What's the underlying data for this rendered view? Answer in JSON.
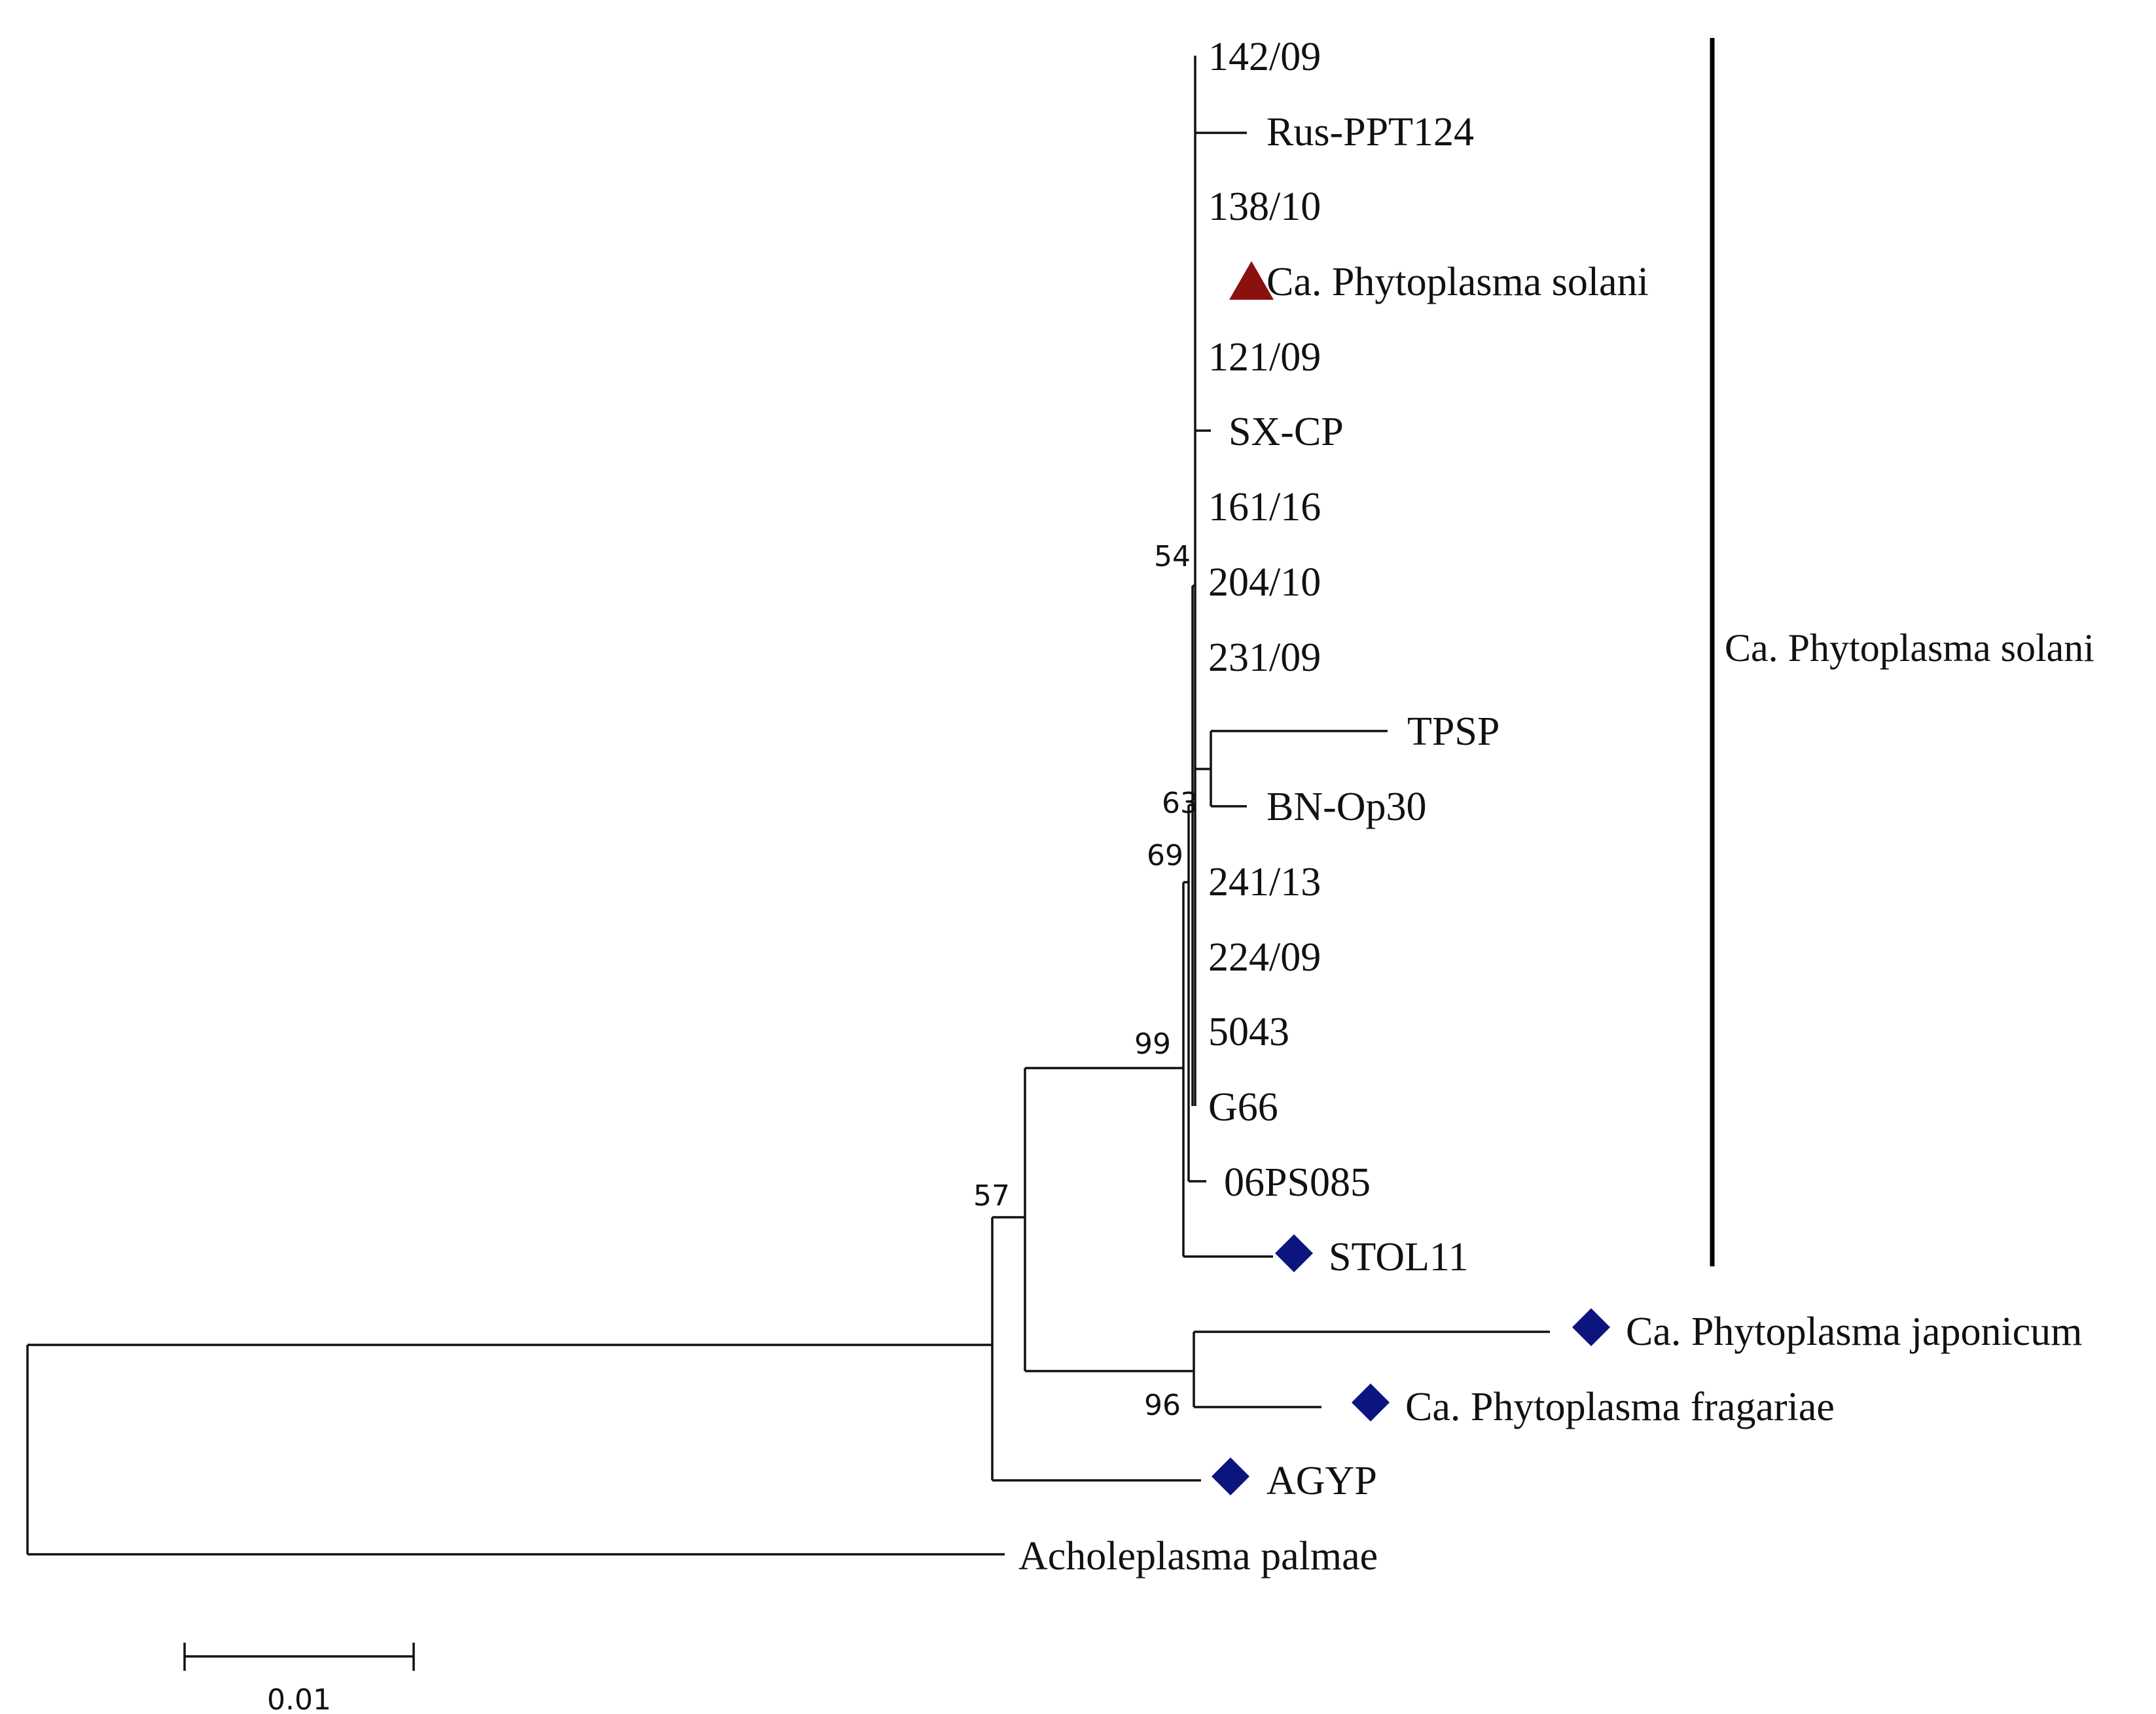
{
  "tree": {
    "leaves": [
      {
        "id": "l1",
        "label": "142/09"
      },
      {
        "id": "l2",
        "label": "Rus-PPT124"
      },
      {
        "id": "l3",
        "label": "138/10"
      },
      {
        "id": "l4",
        "label": "Ca. Phytoplasma solani",
        "marker": "triangle"
      },
      {
        "id": "l5",
        "label": "121/09"
      },
      {
        "id": "l6",
        "label": "SX-CP"
      },
      {
        "id": "l7",
        "label": "161/16"
      },
      {
        "id": "l8",
        "label": "204/10"
      },
      {
        "id": "l9",
        "label": "231/09"
      },
      {
        "id": "l10",
        "label": "TPSP"
      },
      {
        "id": "l11",
        "label": "BN-Op30"
      },
      {
        "id": "l12",
        "label": "241/13"
      },
      {
        "id": "l13",
        "label": "224/09"
      },
      {
        "id": "l14",
        "label": "5043"
      },
      {
        "id": "l15",
        "label": "G66"
      },
      {
        "id": "l16",
        "label": "06PS085"
      },
      {
        "id": "l17",
        "label": "STOL11",
        "marker": "diamond"
      },
      {
        "id": "l18",
        "label": "Ca. Phytoplasma japonicum",
        "marker": "diamond"
      },
      {
        "id": "l19",
        "label": "Ca. Phytoplasma fragariae",
        "marker": "diamond"
      },
      {
        "id": "l20",
        "label": "AGYP",
        "marker": "diamond"
      },
      {
        "id": "l21",
        "label": "Acholeplasma palmae"
      }
    ],
    "bootstrap": [
      {
        "id": "b54",
        "value": "54"
      },
      {
        "id": "b63",
        "value": "63"
      },
      {
        "id": "b69",
        "value": "69"
      },
      {
        "id": "b99",
        "value": "99"
      },
      {
        "id": "b57",
        "value": "57"
      },
      {
        "id": "b96",
        "value": "96"
      }
    ],
    "clade_label": "Ca. Phytoplasma solani",
    "scale_label": "0.01",
    "colors": {
      "triangle_marker": "#8b1010",
      "diamond_marker": "#0c1480",
      "lines": "#111111"
    }
  }
}
